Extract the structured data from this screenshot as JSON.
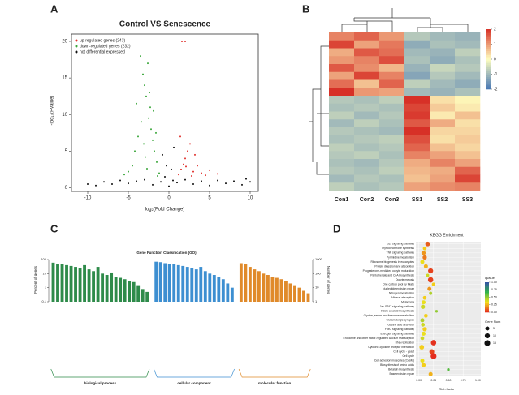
{
  "chart_data": [
    {
      "type": "scatter",
      "panel": "A",
      "title": "Control VS Senescence",
      "x_label": "log₂(Fold Change)",
      "y_label": "-log₁₀(Pvalue)",
      "xlim": [
        -12,
        11
      ],
      "ylim": [
        -0.5,
        21
      ],
      "xticks": [
        -10,
        -5,
        0,
        5,
        10
      ],
      "yticks": [
        0,
        5,
        10,
        15,
        20
      ],
      "legend": "top-left",
      "series": [
        {
          "name": "up-regulated genes (243)",
          "color": "#e0302c",
          "x": [
            1.2,
            1.5,
            1.8,
            2,
            2.3,
            2.6,
            1.4,
            3,
            3.5,
            4,
            4.5,
            5,
            2.8,
            1.6,
            2,
            3.2,
            6,
            2.1
          ],
          "y": [
            1.8,
            2.5,
            3.2,
            4,
            5,
            6,
            7,
            2.2,
            3,
            2,
            1.7,
            2.4,
            1.6,
            20,
            20,
            4.5,
            1.9,
            2.9
          ]
        },
        {
          "name": "down-regulated genes (232)",
          "color": "#3aa63a",
          "x": [
            -1.2,
            -1.5,
            -1.8,
            -2,
            -2.2,
            -2.5,
            -2.3,
            -2.8,
            -3,
            -3.2,
            -2.6,
            -3.5,
            -1.4,
            -3.8,
            -4.2,
            -4.5,
            -5,
            -5.5,
            -2.9,
            -3.4,
            -1.9,
            -2.4,
            -3.1,
            -1.6,
            -4,
            -2.7
          ],
          "y": [
            2,
            3.5,
            5,
            6.5,
            8,
            9.5,
            11,
            12.5,
            14,
            15.5,
            17,
            18,
            1.6,
            7,
            5,
            3,
            2.2,
            1.8,
            4.2,
            9,
            10.5,
            13,
            6,
            7.5,
            11.5,
            2.6
          ]
        },
        {
          "name": "not differential expressed",
          "color": "#111111",
          "x": [
            -9,
            -8,
            -7,
            -6,
            -5,
            -4,
            -3,
            -2,
            -1,
            -0.5,
            0,
            0.3,
            0.5,
            -0.3,
            1,
            2,
            3,
            4,
            5,
            6,
            7,
            8,
            9,
            10,
            -0.8,
            0.6,
            -10,
            9.5
          ],
          "y": [
            0.3,
            0.8,
            0.5,
            1,
            0.6,
            0.9,
            1.1,
            0.4,
            0.8,
            1.5,
            0.2,
            2.5,
            1,
            3,
            0.7,
            1.1,
            0.5,
            0.9,
            0.3,
            1,
            0.6,
            0.9,
            0.4,
            0.8,
            4.5,
            5.5,
            0.5,
            1.2
          ]
        }
      ]
    },
    {
      "type": "heatmap",
      "panel": "B",
      "columns": [
        "Con1",
        "Con2",
        "Con3",
        "SS1",
        "SS2",
        "SS3"
      ],
      "clim": [
        -2,
        2
      ],
      "cticks": [
        2,
        1,
        0,
        -1,
        -2
      ],
      "colors": [
        "#4575b4",
        "#ffffbf",
        "#d73027"
      ],
      "values": [
        [
          1.2,
          1.5,
          1.0,
          -0.8,
          -1.0,
          -1.1
        ],
        [
          1.8,
          0.9,
          1.3,
          -1.2,
          -0.9,
          -1.0
        ],
        [
          0.8,
          1.6,
          1.4,
          -1.0,
          -1.1,
          -0.7
        ],
        [
          1.0,
          1.2,
          1.7,
          -0.9,
          -1.2,
          -0.9
        ],
        [
          1.6,
          1.1,
          0.7,
          -1.1,
          -0.6,
          -0.8
        ],
        [
          0.9,
          1.8,
          1.2,
          -1.3,
          -0.8,
          -1.0
        ],
        [
          1.4,
          0.6,
          1.5,
          -0.7,
          -1.0,
          -1.2
        ],
        [
          2.0,
          1.0,
          0.9,
          -1.0,
          -1.1,
          -0.9
        ],
        [
          -0.8,
          -0.9,
          -0.7,
          2.0,
          0.3,
          0.1
        ],
        [
          -0.9,
          -0.8,
          -0.9,
          1.8,
          0.5,
          0.2
        ],
        [
          -0.7,
          -1.0,
          -0.8,
          1.9,
          0.2,
          0.6
        ],
        [
          -1.0,
          -0.7,
          -0.9,
          1.6,
          0.8,
          0.3
        ],
        [
          -0.8,
          -0.9,
          -1.0,
          2.0,
          0.4,
          0.4
        ],
        [
          -0.9,
          -0.8,
          -0.7,
          1.7,
          0.3,
          0.5
        ],
        [
          -0.7,
          -0.9,
          -0.8,
          1.5,
          0.6,
          0.4
        ],
        [
          -0.8,
          -0.7,
          -0.9,
          1.2,
          0.9,
          0.6
        ],
        [
          -0.9,
          -1.0,
          -0.8,
          0.8,
          1.2,
          0.9
        ],
        [
          -0.8,
          -0.9,
          -0.7,
          0.7,
          0.8,
          1.5
        ],
        [
          -1.0,
          -0.8,
          -0.9,
          0.6,
          0.9,
          1.8
        ],
        [
          -0.7,
          -0.9,
          -0.8,
          0.9,
          1.1,
          1.2
        ]
      ]
    },
    {
      "type": "bar",
      "panel": "C",
      "title": "Gene Function Classification (GO)",
      "y_label": "Percent of genes",
      "y2_label": "Number of genes",
      "log": true,
      "ylim": [
        0.1,
        100
      ],
      "yticks": [
        0.1,
        1,
        10,
        100
      ],
      "y2lim": [
        1,
        1000
      ],
      "y2ticks": [
        1,
        10,
        100,
        1000
      ],
      "series": [
        {
          "name": "biological process",
          "color": "#2e8b4a",
          "values": [
            60,
            45,
            50,
            40,
            35,
            30,
            25,
            40,
            20,
            15,
            30,
            10,
            8,
            12,
            6,
            5,
            4,
            3,
            2.5,
            1.5,
            0.8,
            0.5
          ]
        },
        {
          "name": "cellular component",
          "color": "#3d8fd1",
          "values": [
            70,
            65,
            55,
            50,
            45,
            40,
            35,
            30,
            25,
            20,
            30,
            15,
            10,
            8,
            6,
            4,
            2,
            1
          ]
        },
        {
          "name": "molecular function",
          "color": "#e08a2a",
          "values": [
            55,
            50,
            30,
            20,
            15,
            10,
            8,
            6,
            5,
            4,
            3,
            2,
            1.5,
            1,
            0.6,
            0.4
          ]
        }
      ]
    },
    {
      "type": "bubble",
      "panel": "D",
      "title": "KEGG Enrichment",
      "x_label": "Rich factor",
      "xlim": [
        -0.05,
        1.05
      ],
      "xticks": [
        {
          "value": 0,
          "label": "0.00"
        },
        {
          "value": 0.25,
          "label": "0.25"
        },
        {
          "value": 0.5,
          "label": "0.50"
        },
        {
          "value": 0.75,
          "label": "0.75"
        },
        {
          "value": 1,
          "label": "1.00"
        }
      ],
      "color_label": "qvalue",
      "cticks": [
        {
          "value": 1,
          "label": "1.00"
        },
        {
          "value": 0.75,
          "label": "0.75"
        },
        {
          "value": 0.5,
          "label": "0.50"
        },
        {
          "value": 0.25,
          "label": "0.25"
        },
        {
          "value": 0,
          "label": "0.00"
        }
      ],
      "size_label": "Gene Num",
      "size_ticks": [
        5,
        10,
        15
      ],
      "categories": [
        "p53 signaling pathway",
        "Thyroid hormone synthesis",
        "TNF signaling pathway",
        "Pyrimidine metabolism",
        "Ribosome biogenesis in eukaryotes",
        "Protein digestion and absorption",
        "Progesterone-mediated oocyte maturation",
        "Pantothenate and CoA biosynthesis",
        "Oocyte meiosis",
        "One carbon pool by folate",
        "Nucleotide excision repair",
        "Nitrogen metabolism",
        "Mineral absorption",
        "Melanoma",
        "Jak-STAT signaling pathway",
        "Indole alkaloid biosynthesis",
        "Glycine, serine and threonine metabolism",
        "Glutamatergic synapse",
        "Gastric acid secretion",
        "FoxO signaling pathway",
        "Estrogen signaling pathway",
        "Endocrine and other factor-regulated calcium reabsorption",
        "DNA replication",
        "Cytokine-cytokine receptor interaction",
        "Cell cycle - yeast",
        "Cell cycle",
        "Cell adhesion molecules (CAMs)",
        "Biosynthesis of amino acids",
        "Betalain biosynthesis",
        "Base excision repair"
      ],
      "rich_factor": [
        0.15,
        0.1,
        0.08,
        0.1,
        0.06,
        0.12,
        0.2,
        0.15,
        0.2,
        0.25,
        0.18,
        0.2,
        0.1,
        0.08,
        0.07,
        0.3,
        0.12,
        0.06,
        0.07,
        0.1,
        0.08,
        0.06,
        0.25,
        0.05,
        0.22,
        0.25,
        0.06,
        0.08,
        0.5,
        0.2
      ],
      "qvalue": [
        0.1,
        0.3,
        0.2,
        0.15,
        0.35,
        0.25,
        0.05,
        0.4,
        0.05,
        0.3,
        0.2,
        0.45,
        0.3,
        0.35,
        0.4,
        0.5,
        0.3,
        0.45,
        0.4,
        0.3,
        0.35,
        0.4,
        0.02,
        0.3,
        0.05,
        0.01,
        0.35,
        0.3,
        0.6,
        0.25
      ],
      "gene_num": [
        8,
        4,
        6,
        6,
        5,
        5,
        10,
        2,
        12,
        3,
        5,
        2,
        4,
        5,
        6,
        1,
        4,
        5,
        4,
        6,
        5,
        4,
        12,
        8,
        9,
        15,
        5,
        6,
        1,
        5
      ]
    }
  ]
}
